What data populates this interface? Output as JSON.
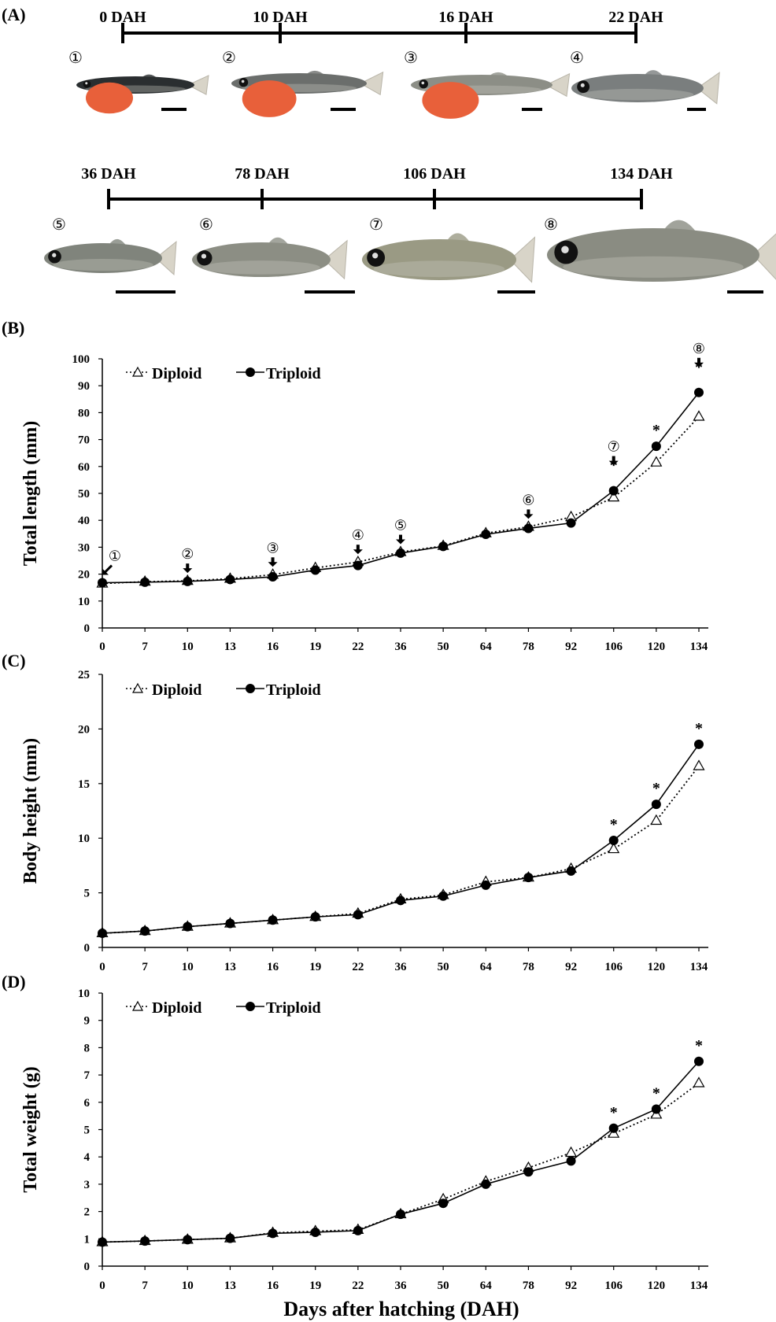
{
  "figure": {
    "panel_a": {
      "label": "(A)",
      "timeline1": [
        "0 DAH",
        "10 DAH",
        "16 DAH",
        "22 DAH"
      ],
      "timeline2": [
        "36 DAH",
        "78 DAH",
        "106 DAH",
        "134 DAH"
      ],
      "stage_markers": [
        "①",
        "②",
        "③",
        "④",
        "⑤",
        "⑥",
        "⑦",
        "⑧"
      ],
      "body_colors": [
        "#2a2e30",
        "#6b6e6c",
        "#8c8e86",
        "#7a7e7e",
        "#80847c",
        "#8c8e84",
        "#9a9a84",
        "#8a8c82"
      ],
      "yolk_color": "#e8603a"
    },
    "x_title": "Days after hatching (DAH)"
  },
  "chart_data": [
    {
      "type": "line",
      "panel": "(B)",
      "ylabel": "Total length (mm)",
      "ylim": [
        0,
        100
      ],
      "ytick_step": 10,
      "categories": [
        "0",
        "7",
        "10",
        "13",
        "16",
        "19",
        "22",
        "36",
        "50",
        "64",
        "78",
        "92",
        "106",
        "120",
        "134"
      ],
      "legend": [
        "Diploid",
        "Triploid"
      ],
      "legend_position": "top-left",
      "series": [
        {
          "name": "Diploid",
          "style": "dotted, open triangle",
          "values": [
            16.5,
            17.2,
            17.5,
            18.3,
            19.8,
            22.3,
            24.5,
            28.2,
            30.5,
            35.2,
            37.6,
            41.2,
            48.5,
            61.5,
            78.5
          ]
        },
        {
          "name": "Triploid",
          "style": "solid, filled circle",
          "values": [
            16.8,
            17.0,
            17.3,
            18.0,
            19.0,
            21.5,
            23.2,
            27.8,
            30.3,
            34.8,
            37.0,
            39.0,
            51.0,
            67.5,
            87.5
          ]
        }
      ],
      "significant": [
        "106",
        "120",
        "134"
      ],
      "stage_arrows": [
        {
          "x": "0",
          "label": "①"
        },
        {
          "x": "10",
          "label": "②"
        },
        {
          "x": "16",
          "label": "③"
        },
        {
          "x": "22",
          "label": "④"
        },
        {
          "x": "36",
          "label": "⑤"
        },
        {
          "x": "78",
          "label": "⑥"
        },
        {
          "x": "106",
          "label": "⑦"
        },
        {
          "x": "134",
          "label": "⑧"
        }
      ]
    },
    {
      "type": "line",
      "panel": "(C)",
      "ylabel": "Body height (mm)",
      "ylim": [
        0,
        25
      ],
      "ytick_step": 5,
      "categories": [
        "0",
        "7",
        "10",
        "13",
        "16",
        "19",
        "22",
        "36",
        "50",
        "64",
        "78",
        "92",
        "106",
        "120",
        "134"
      ],
      "legend": [
        "Diploid",
        "Triploid"
      ],
      "legend_position": "top-left",
      "series": [
        {
          "name": "Diploid",
          "style": "dotted, open triangle",
          "values": [
            1.3,
            1.5,
            1.9,
            2.2,
            2.5,
            2.8,
            3.1,
            4.4,
            4.8,
            6.0,
            6.4,
            7.2,
            9.0,
            11.6,
            16.6
          ]
        },
        {
          "name": "Triploid",
          "style": "solid, filled circle",
          "values": [
            1.3,
            1.5,
            1.9,
            2.2,
            2.5,
            2.8,
            3.0,
            4.3,
            4.7,
            5.7,
            6.4,
            7.0,
            9.8,
            13.1,
            18.6
          ]
        }
      ],
      "significant": [
        "106",
        "120",
        "134"
      ]
    },
    {
      "type": "line",
      "panel": "(D)",
      "ylabel": "Total weight (g)",
      "ylim": [
        0,
        10
      ],
      "ytick_step": 1,
      "categories": [
        "0",
        "7",
        "10",
        "13",
        "16",
        "19",
        "22",
        "36",
        "50",
        "64",
        "78",
        "92",
        "106",
        "120",
        "134"
      ],
      "legend": [
        "Diploid",
        "Triploid"
      ],
      "legend_position": "top-left",
      "series": [
        {
          "name": "Diploid",
          "style": "dotted, open triangle",
          "values": [
            0.88,
            0.92,
            0.97,
            1.02,
            1.22,
            1.28,
            1.33,
            1.9,
            2.45,
            3.1,
            3.6,
            4.15,
            4.85,
            5.55,
            6.7
          ]
        },
        {
          "name": "Triploid",
          "style": "solid, filled circle",
          "values": [
            0.88,
            0.92,
            0.97,
            1.02,
            1.2,
            1.24,
            1.3,
            1.9,
            2.3,
            3.0,
            3.45,
            3.85,
            5.05,
            5.75,
            7.5
          ]
        }
      ],
      "significant": [
        "106",
        "120",
        "134"
      ]
    }
  ]
}
